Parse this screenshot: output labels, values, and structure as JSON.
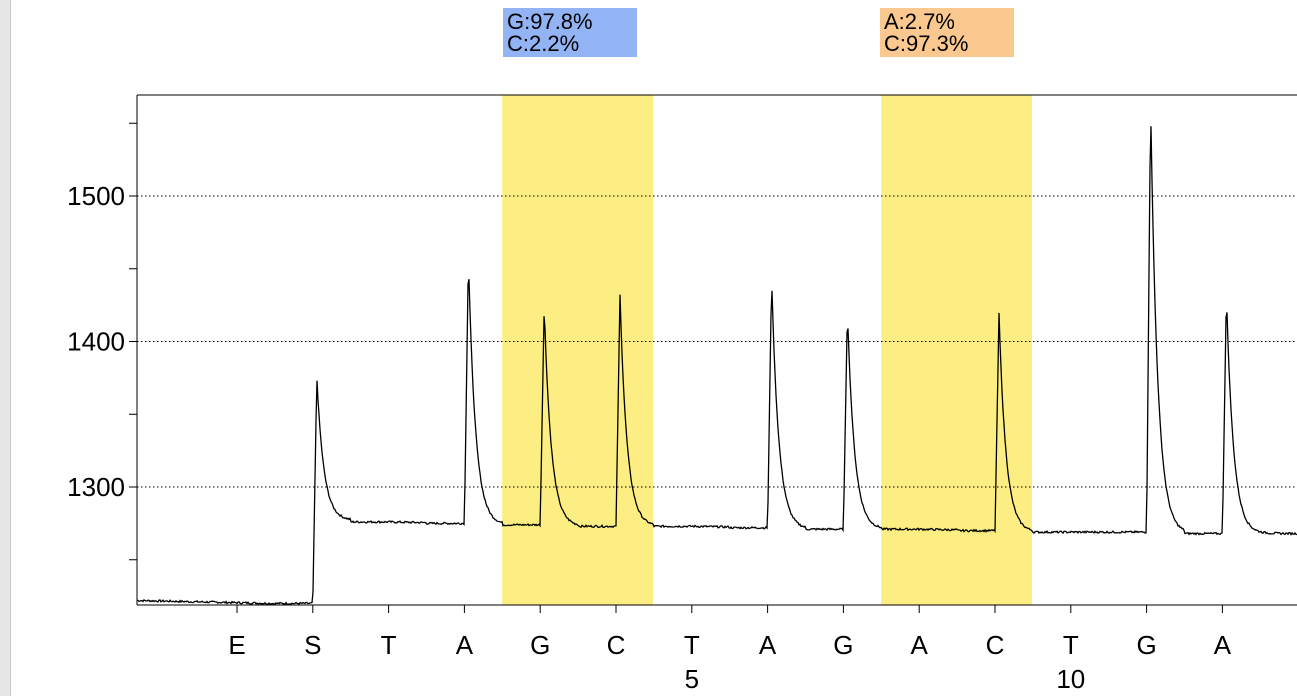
{
  "colors": {
    "highlight": "#fcee82",
    "label_blue": "#93b4f4",
    "label_orange": "#fbc98f",
    "trace": "#000000",
    "grid": "#000000"
  },
  "labels": [
    {
      "lines": [
        "G:97.8%",
        "C:2.2%"
      ],
      "color": "#93b4f4"
    },
    {
      "lines": [
        "A:2.7%",
        "C:97.3%"
      ],
      "color": "#fbc98f"
    }
  ],
  "chart_data": {
    "type": "line",
    "ylim": [
      1217,
      1565
    ],
    "yticks": [
      1500,
      1400,
      1300
    ],
    "yticks_minor": [
      1550,
      1450,
      1350,
      1250
    ],
    "grid": true,
    "dispensation": [
      "E",
      "S",
      "T",
      "A",
      "G",
      "C",
      "T",
      "A",
      "G",
      "A",
      "C",
      "T",
      "G",
      "A"
    ],
    "position_numbers": [
      {
        "index": 6,
        "label": "5"
      },
      {
        "index": 11,
        "label": "10"
      }
    ],
    "highlighted_positions": [
      4,
      5,
      9,
      10
    ],
    "peaks": [
      {
        "base": "E",
        "index": 0,
        "baseline_before": 1222,
        "height": 1220
      },
      {
        "base": "S",
        "index": 1,
        "baseline_before": 1220,
        "height": 1376
      },
      {
        "base": "T",
        "index": 2,
        "baseline_before": 1276,
        "height": 1276
      },
      {
        "base": "A",
        "index": 3,
        "baseline_before": 1275,
        "height": 1458
      },
      {
        "base": "G",
        "index": 4,
        "baseline_before": 1274,
        "height": 1425
      },
      {
        "base": "C",
        "index": 5,
        "baseline_before": 1273,
        "height": 1432
      },
      {
        "base": "T",
        "index": 6,
        "baseline_before": 1273,
        "height": 1273
      },
      {
        "base": "A",
        "index": 7,
        "baseline_before": 1272,
        "height": 1445
      },
      {
        "base": "G",
        "index": 8,
        "baseline_before": 1271,
        "height": 1422
      },
      {
        "base": "A",
        "index": 9,
        "baseline_before": 1271,
        "height": 1272
      },
      {
        "base": "C",
        "index": 10,
        "baseline_before": 1270,
        "height": 1419
      },
      {
        "base": "T",
        "index": 11,
        "baseline_before": 1269,
        "height": 1270
      },
      {
        "base": "G",
        "index": 12,
        "baseline_before": 1269,
        "height": 1565
      },
      {
        "base": "A",
        "index": 13,
        "baseline_before": 1268,
        "height": 1433
      }
    ]
  }
}
